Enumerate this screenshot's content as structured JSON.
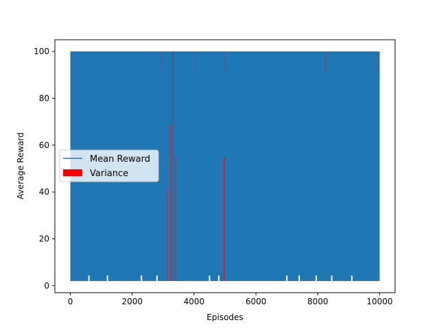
{
  "chart_data": {
    "type": "line",
    "title": "",
    "xlabel": "Episodes",
    "ylabel": "Average Reward",
    "xlim": [
      -500,
      10500
    ],
    "ylim": [
      -3,
      105
    ],
    "xticks": [
      0,
      2000,
      4000,
      6000,
      8000,
      10000
    ],
    "xtick_labels": [
      "0",
      "2000",
      "4000",
      "6000",
      "8000",
      "10000"
    ],
    "yticks": [
      0,
      20,
      40,
      60,
      80,
      100
    ],
    "ytick_labels": [
      "0",
      "20",
      "40",
      "60",
      "80",
      "100"
    ],
    "grid": false,
    "legend": {
      "placement": "center-left",
      "entries": [
        {
          "label": "Mean Reward",
          "marker": "line",
          "color": "#1f77b4"
        },
        {
          "label": "Variance",
          "marker": "patch",
          "color": "#ff0000"
        }
      ]
    },
    "series": [
      {
        "name": "Mean Reward",
        "color": "#1f77b4",
        "x_range": [
          0,
          10000
        ],
        "y_max": 100,
        "y_min_typical": 2,
        "x_gaps": [
          [
            3140,
            3150
          ],
          [
            3235,
            3250
          ],
          [
            3300,
            3320
          ],
          [
            3395,
            3410
          ],
          [
            4960,
            4990
          ]
        ],
        "dips": [
          {
            "x": 3145,
            "y": 41
          },
          {
            "x": 3245,
            "y": 69
          },
          {
            "x": 3400,
            "y": 55
          },
          {
            "x": 4975,
            "y": 55
          }
        ]
      },
      {
        "name": "Variance",
        "color": "#ff0000",
        "x_range": [
          0,
          10000
        ]
      }
    ]
  }
}
